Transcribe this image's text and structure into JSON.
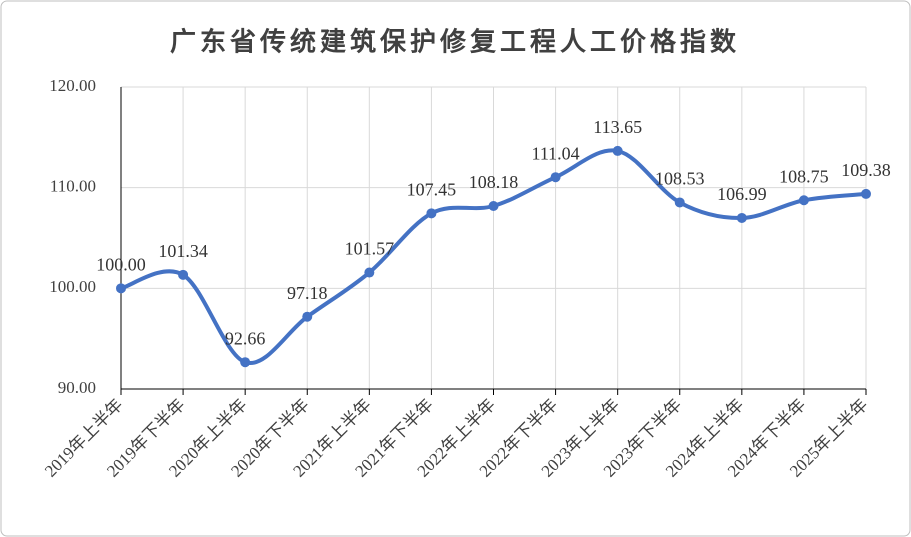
{
  "chart_data": {
    "type": "line",
    "title": "广东省传统建筑保护修复工程人工价格指数",
    "categories": [
      "2019年上半年",
      "2019年下半年",
      "2020年上半年",
      "2020年下半年",
      "2021年上半年",
      "2021年下半年",
      "2022年上半年",
      "2022年下半年",
      "2023年上半年",
      "2023年下半年",
      "2024年上半年",
      "2024年下半年",
      "2025年上半年"
    ],
    "series": [
      {
        "name": "人工价格指数",
        "color": "#4472c4",
        "values": [
          100,
          101.34,
          92.66,
          97.18,
          101.57,
          107.45,
          108.18,
          111.04,
          113.65,
          108.53,
          106.99,
          108.75,
          109.38
        ],
        "value_labels": [
          "100.00",
          "101.34",
          "92.66",
          "97.18",
          "101.57",
          "107.45",
          "108.18",
          "111.04",
          "113.65",
          "108.53",
          "106.99",
          "108.75",
          "109.38"
        ]
      }
    ],
    "ylim": [
      90,
      120
    ],
    "yticks": [
      {
        "value": 90,
        "label": "90.00"
      },
      {
        "value": 100,
        "label": "100.00"
      },
      {
        "value": 110,
        "label": "110.00"
      },
      {
        "value": 120,
        "label": "120.00"
      }
    ],
    "grid": true,
    "smooth": true
  }
}
